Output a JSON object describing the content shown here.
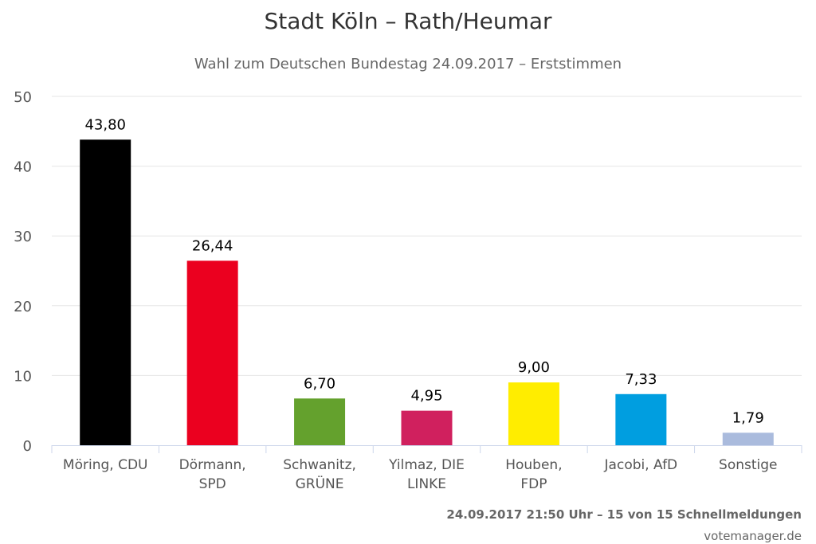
{
  "header": {
    "title": "Stadt Köln – Rath/Heumar",
    "subtitle": "Wahl zum Deutschen Bundestag 24.09.2017 – Erststimmen"
  },
  "footer": {
    "status": "24.09.2017 21:50 Uhr – 15 von 15 Schnellmeldungen",
    "credit": "votemanager.de"
  },
  "chart_data": {
    "type": "bar",
    "title": "Stadt Köln – Rath/Heumar",
    "subtitle": "Wahl zum Deutschen Bundestag 24.09.2017 – Erststimmen",
    "xlabel": "",
    "ylabel": "",
    "ylim": [
      0,
      50
    ],
    "yticks": [
      "0",
      "10",
      "20",
      "30",
      "40",
      "50"
    ],
    "grid": true,
    "legend": "none",
    "categories": [
      [
        "Möring, CDU"
      ],
      [
        "Dörmann,",
        "SPD"
      ],
      [
        "Schwanitz,",
        "GRÜNE"
      ],
      [
        "Yilmaz, DIE",
        "LINKE"
      ],
      [
        "Houben,",
        "FDP"
      ],
      [
        "Jacobi, AfD"
      ],
      [
        "Sonstige"
      ]
    ],
    "values": [
      43.8,
      26.44,
      6.7,
      4.95,
      9.0,
      7.33,
      1.79
    ],
    "value_labels": [
      "43,80",
      "26,44",
      "6,70",
      "4,95",
      "9,00",
      "7,33",
      "1,79"
    ],
    "colors": [
      "#000000",
      "#eb001f",
      "#64a12d",
      "#d0205e",
      "#ffed00",
      "#009ee0",
      "#aabbdd"
    ]
  }
}
